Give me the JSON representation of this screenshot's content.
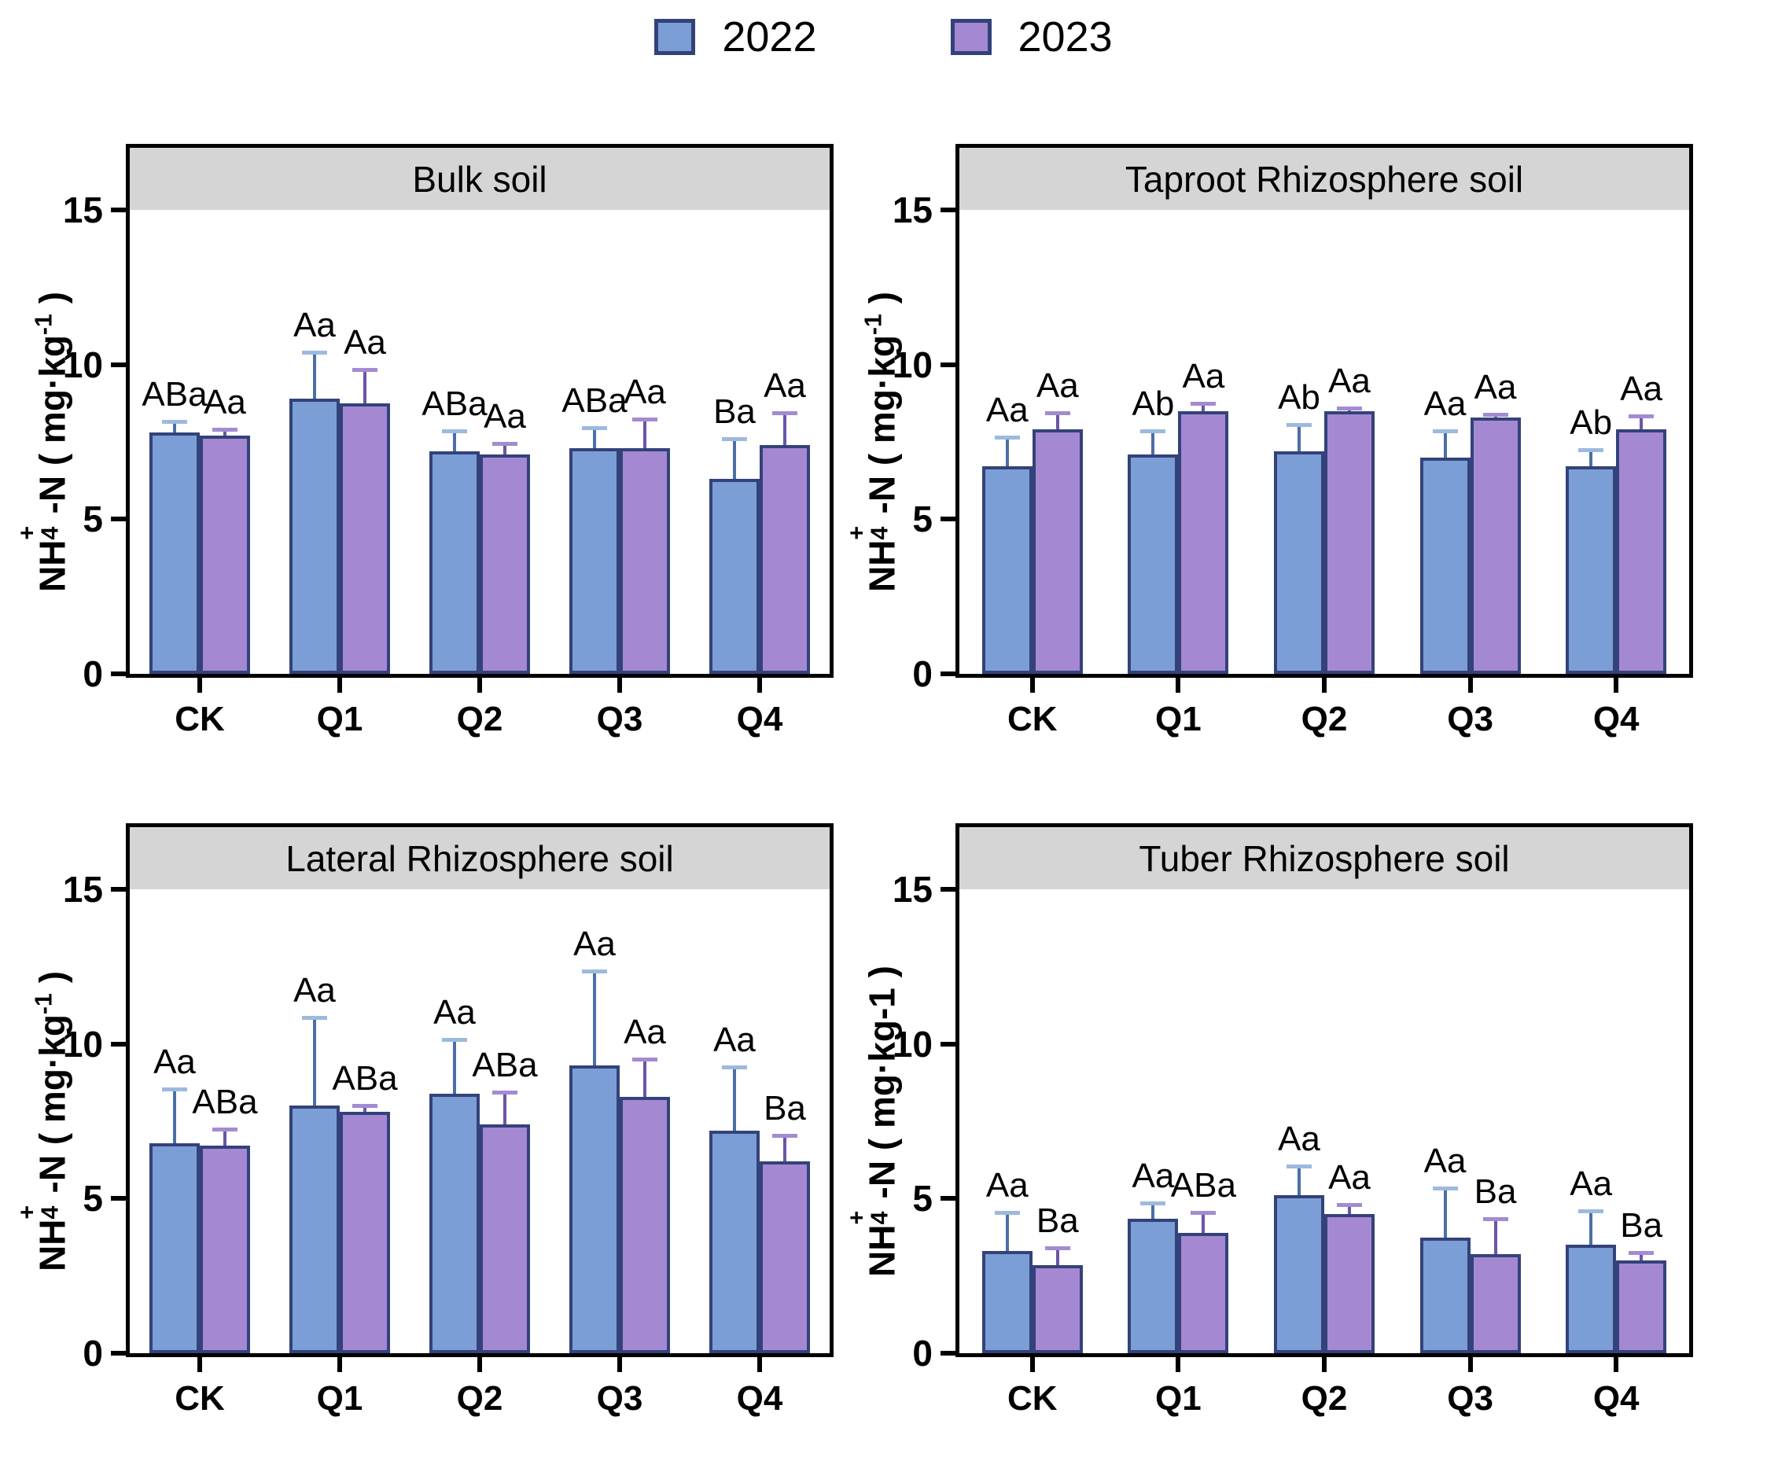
{
  "legend": {
    "items": [
      {
        "label": "2022",
        "color": "#7c9ed6"
      },
      {
        "label": "2023",
        "color": "#a588d2"
      }
    ]
  },
  "colors": {
    "bar_border": "#33427a",
    "header_bg": "#d5d5d5",
    "axis": "#000000"
  },
  "chart_data": [
    {
      "type": "bar",
      "title": "Bulk soil",
      "ylabel": {
        "pre": "NH",
        "sub": "4",
        "plus": "+",
        "mid": "-N ( mg·kg",
        "exp": "-1",
        "post": " )",
        "exp_superscript": true
      },
      "ylim": [
        0,
        15
      ],
      "yticks": [
        0,
        5,
        10,
        15
      ],
      "grid": false,
      "legend_position": "top-center",
      "categories": [
        "CK",
        "Q1",
        "Q2",
        "Q3",
        "Q4"
      ],
      "series": [
        {
          "name": "2022",
          "color": "#7c9ed6",
          "err_line_color": "#4a6fa5",
          "err_cap_color": "#9cbade",
          "values": [
            7.8,
            8.9,
            7.2,
            7.3,
            6.3
          ],
          "errors": [
            0.4,
            1.55,
            0.7,
            0.7,
            1.35
          ],
          "letters": [
            "ABa",
            "Aa",
            "ABa",
            "ABa",
            "Ba"
          ]
        },
        {
          "name": "2023",
          "color": "#a588d2",
          "err_line_color": "#6a55a8",
          "err_cap_color": "#a38bd2",
          "values": [
            7.7,
            8.75,
            7.1,
            7.3,
            7.4
          ],
          "errors": [
            0.25,
            1.15,
            0.4,
            1.0,
            1.1
          ],
          "letters": [
            "Aa",
            "Aa",
            "Aa",
            "Aa",
            "Aa"
          ]
        }
      ]
    },
    {
      "type": "bar",
      "title": "Taproot Rhizosphere soil",
      "ylabel": {
        "pre": "NH",
        "sub": "4",
        "plus": "+",
        "mid": "-N ( mg·kg",
        "exp": "-1",
        "post": " )",
        "exp_superscript": true
      },
      "ylim": [
        0,
        15
      ],
      "yticks": [
        0,
        5,
        10,
        15
      ],
      "grid": false,
      "categories": [
        "CK",
        "Q1",
        "Q2",
        "Q3",
        "Q4"
      ],
      "series": [
        {
          "name": "2022",
          "color": "#7c9ed6",
          "err_line_color": "#4a6fa5",
          "err_cap_color": "#9cbade",
          "values": [
            6.7,
            7.1,
            7.2,
            7.0,
            6.7
          ],
          "errors": [
            1.0,
            0.8,
            0.9,
            0.9,
            0.6
          ],
          "letters": [
            "Aa",
            "Ab",
            "Ab",
            "Aa",
            "Ab"
          ]
        },
        {
          "name": "2023",
          "color": "#a588d2",
          "err_line_color": "#6a55a8",
          "err_cap_color": "#a38bd2",
          "values": [
            7.9,
            8.5,
            8.5,
            8.3,
            7.9
          ],
          "errors": [
            0.6,
            0.3,
            0.15,
            0.15,
            0.5
          ],
          "letters": [
            "Aa",
            "Aa",
            "Aa",
            "Aa",
            "Aa"
          ]
        }
      ]
    },
    {
      "type": "bar",
      "title": "Lateral Rhizosphere soil",
      "ylabel": {
        "pre": "NH",
        "sub": "4",
        "plus": "+",
        "mid": "-N ( mg·kg",
        "exp": "-1",
        "post": " )",
        "exp_superscript": true
      },
      "ylim": [
        0,
        15
      ],
      "yticks": [
        0,
        5,
        10,
        15
      ],
      "grid": false,
      "categories": [
        "CK",
        "Q1",
        "Q2",
        "Q3",
        "Q4"
      ],
      "series": [
        {
          "name": "2022",
          "color": "#7c9ed6",
          "err_line_color": "#4a6fa5",
          "err_cap_color": "#9cbade",
          "values": [
            6.8,
            8.0,
            8.4,
            9.3,
            7.2
          ],
          "errors": [
            1.8,
            2.9,
            1.8,
            3.1,
            2.1
          ],
          "letters": [
            "Aa",
            "Aa",
            "Aa",
            "Aa",
            "Aa"
          ]
        },
        {
          "name": "2023",
          "color": "#a588d2",
          "err_line_color": "#6a55a8",
          "err_cap_color": "#a38bd2",
          "values": [
            6.7,
            7.8,
            7.4,
            8.3,
            6.2
          ],
          "errors": [
            0.6,
            0.25,
            1.1,
            1.25,
            0.9
          ],
          "letters": [
            "ABa",
            "ABa",
            "ABa",
            "Aa",
            "Ba"
          ]
        }
      ]
    },
    {
      "type": "bar",
      "title": "Tuber Rhizosphere soil",
      "ylabel": {
        "pre": "NH",
        "sub": "4",
        "plus": "+",
        "mid": "-N ( mg·kg",
        "exp": "-1",
        "post": " )",
        "exp_superscript": false
      },
      "ylim": [
        0,
        15
      ],
      "yticks": [
        0,
        5,
        10,
        15
      ],
      "grid": false,
      "categories": [
        "CK",
        "Q1",
        "Q2",
        "Q3",
        "Q4"
      ],
      "series": [
        {
          "name": "2022",
          "color": "#7c9ed6",
          "err_line_color": "#4a6fa5",
          "err_cap_color": "#9cbade",
          "values": [
            3.3,
            4.35,
            5.1,
            3.75,
            3.5
          ],
          "errors": [
            1.3,
            0.55,
            1.0,
            1.65,
            1.15
          ],
          "letters": [
            "Aa",
            "Aa",
            "Aa",
            "Aa",
            "Aa"
          ]
        },
        {
          "name": "2023",
          "color": "#a588d2",
          "err_line_color": "#6a55a8",
          "err_cap_color": "#a38bd2",
          "values": [
            2.85,
            3.9,
            4.5,
            3.2,
            3.0
          ],
          "errors": [
            0.6,
            0.7,
            0.35,
            1.2,
            0.3
          ],
          "letters": [
            "Ba",
            "ABa",
            "Aa",
            "Ba",
            "Ba"
          ]
        }
      ]
    }
  ]
}
